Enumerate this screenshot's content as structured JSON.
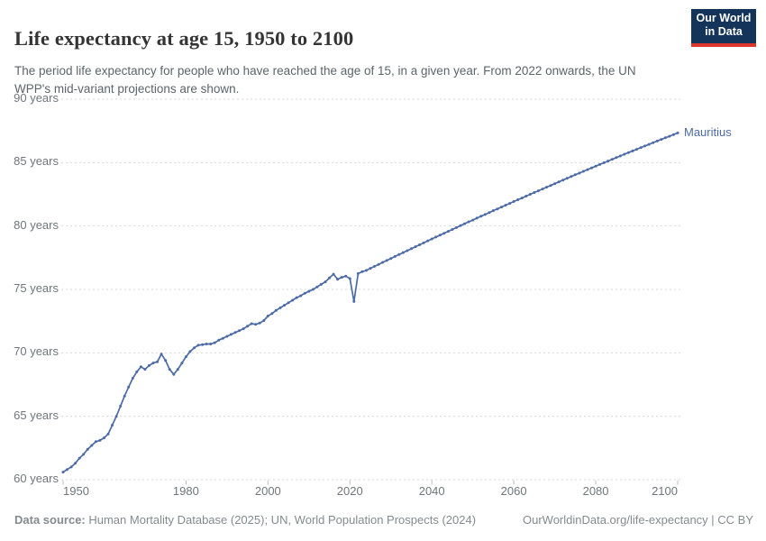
{
  "header": {
    "title": "Life expectancy at age 15, 1950 to 2100",
    "subtitle": "The period life expectancy for people who have reached the age of 15, in a given year. From 2022 onwards, the UN WPP's mid-variant projections are shown.",
    "logo": {
      "line1": "Our World",
      "line2": "in Data",
      "bg_color": "#143459",
      "stripe_color": "#dc352c"
    }
  },
  "chart_data": {
    "type": "line",
    "title": "Life expectancy at age 15, 1950 to 2100",
    "xlabel": "",
    "ylabel": "",
    "xlim": [
      1950,
      2100
    ],
    "ylim": [
      60,
      90
    ],
    "x_start": 1950,
    "x_step": 1,
    "x_end": 2100,
    "x_ticks": [
      1950,
      1980,
      2000,
      2020,
      2040,
      2060,
      2080,
      2100
    ],
    "y_ticks": [
      {
        "value": 60,
        "label": "60 years"
      },
      {
        "value": 65,
        "label": "65 years"
      },
      {
        "value": 70,
        "label": "70 years"
      },
      {
        "value": 75,
        "label": "75 years"
      },
      {
        "value": 80,
        "label": "80 years"
      },
      {
        "value": 85,
        "label": "85 years"
      },
      {
        "value": 90,
        "label": "90 years"
      }
    ],
    "grid": "horizontal-dashed",
    "legend_position": "line-end-label",
    "projection_from": 2022,
    "series": [
      {
        "name": "Mauritius",
        "color": "#4C6BA6",
        "unit": "years",
        "values": [
          60.6,
          60.8,
          61.0,
          61.3,
          61.7,
          62.0,
          62.4,
          62.7,
          63.0,
          63.1,
          63.3,
          63.6,
          64.3,
          65.0,
          65.8,
          66.6,
          67.3,
          68.0,
          68.5,
          68.9,
          68.7,
          69.0,
          69.2,
          69.3,
          69.9,
          69.4,
          68.7,
          68.3,
          68.7,
          69.2,
          69.7,
          70.1,
          70.4,
          70.6,
          70.65,
          70.7,
          70.7,
          70.8,
          71.0,
          71.15,
          71.3,
          71.45,
          71.6,
          71.75,
          71.9,
          72.1,
          72.3,
          72.25,
          72.35,
          72.55,
          72.9,
          73.1,
          73.35,
          73.55,
          73.75,
          73.95,
          74.15,
          74.35,
          74.5,
          74.7,
          74.85,
          75.0,
          75.2,
          75.4,
          75.6,
          75.9,
          76.2,
          75.8,
          75.95,
          76.05,
          75.85,
          74.05,
          76.25,
          76.4,
          76.5,
          76.66,
          76.82,
          76.97,
          77.13,
          77.28,
          77.44,
          77.6,
          77.75,
          77.91,
          78.06,
          78.21,
          78.37,
          78.52,
          78.67,
          78.83,
          78.98,
          79.13,
          79.28,
          79.43,
          79.58,
          79.73,
          79.88,
          80.03,
          80.18,
          80.33,
          80.47,
          80.62,
          80.77,
          80.91,
          81.06,
          81.21,
          81.35,
          81.5,
          81.64,
          81.78,
          81.93,
          82.07,
          82.21,
          82.36,
          82.5,
          82.64,
          82.78,
          82.92,
          83.06,
          83.2,
          83.34,
          83.48,
          83.62,
          83.76,
          83.9,
          84.04,
          84.17,
          84.31,
          84.45,
          84.58,
          84.72,
          84.85,
          84.99,
          85.12,
          85.26,
          85.39,
          85.52,
          85.66,
          85.79,
          85.92,
          86.05,
          86.18,
          86.31,
          86.44,
          86.57,
          86.7,
          86.83,
          86.96,
          87.08,
          87.21,
          87.34
        ]
      }
    ]
  },
  "footer": {
    "source_label": "Data source:",
    "source_text": " Human Mortality Database (2025); UN, World Population Prospects (2024)",
    "link_text": "OurWorldinData.org/life-expectancy | CC BY"
  }
}
